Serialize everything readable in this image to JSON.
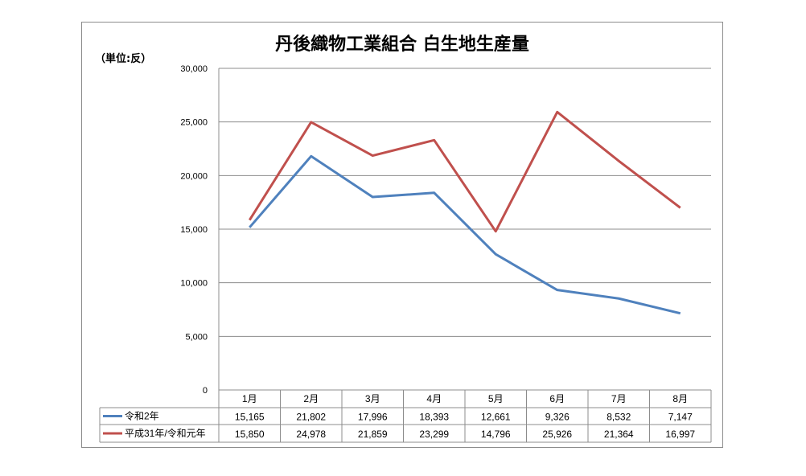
{
  "chart_data": {
    "type": "line",
    "title": "丹後織物工業組合 白生地生産量",
    "unit_label": "（単位:反）",
    "categories": [
      "1月",
      "2月",
      "3月",
      "4月",
      "5月",
      "6月",
      "7月",
      "8月"
    ],
    "ylim": [
      0,
      30000
    ],
    "yticks": [
      0,
      5000,
      10000,
      15000,
      20000,
      25000,
      30000
    ],
    "ytick_labels": [
      "0",
      "5,000",
      "10,000",
      "15,000",
      "20,000",
      "25,000",
      "30,000"
    ],
    "grid": true,
    "legend": "data-table",
    "series": [
      {
        "name": "令和2年",
        "color": "#4f81bd",
        "values": [
          15165,
          21802,
          17996,
          18393,
          12661,
          9326,
          8532,
          7147
        ],
        "labels": [
          "15,165",
          "21,802",
          "17,996",
          "18,393",
          "12,661",
          "9,326",
          "8,532",
          "7,147"
        ]
      },
      {
        "name": "平成31年/令和元年",
        "color": "#c0504d",
        "values": [
          15850,
          24978,
          21859,
          23299,
          14796,
          25926,
          21364,
          16997
        ],
        "labels": [
          "15,850",
          "24,978",
          "21,859",
          "23,299",
          "14,796",
          "25,926",
          "21,364",
          "16,997"
        ]
      }
    ]
  }
}
